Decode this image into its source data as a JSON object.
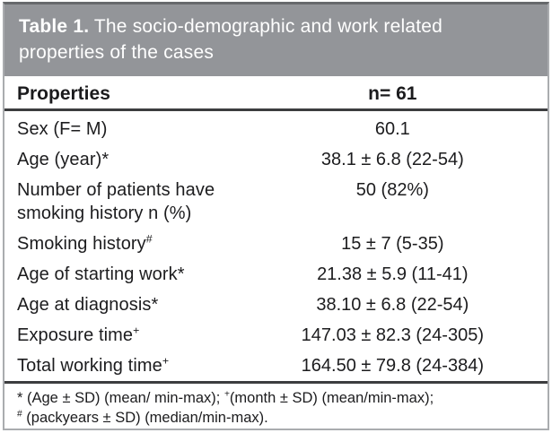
{
  "table": {
    "title_label": "Table 1.",
    "title_text": " The socio-demographic and work related properties of the cases",
    "columns": {
      "property": "Properties",
      "value": "n= 61"
    },
    "rows": [
      {
        "label": "Sex (F= M)",
        "sup": "",
        "value": "60.1"
      },
      {
        "label": "Age (year)*",
        "sup": "",
        "value": "38.1 ± 6.8 (22-54)"
      },
      {
        "label": "Number of patients have smoking history n (%)",
        "sup": "",
        "value": "50 (82%)"
      },
      {
        "label": "Smoking history",
        "sup": "#",
        "value": "15 ± 7 (5-35)"
      },
      {
        "label": "Age of starting work*",
        "sup": "",
        "value": "21.38 ± 5.9 (11-41)"
      },
      {
        "label": "Age at diagnosis*",
        "sup": "",
        "value": "38.10 ± 6.8 (22-54)"
      },
      {
        "label": "Exposure time",
        "sup": "+",
        "value": "147.03 ± 82.3 (24-305)"
      },
      {
        "label": "Total working time",
        "sup": "+",
        "value": "164.50 ± 79.8 (24-384)"
      }
    ],
    "footnote_lines": [
      [
        {
          "t": "* (Age ± SD) (mean/ min-max); "
        },
        {
          "s": "+"
        },
        {
          "t": "(month ± SD) (mean/min-max);"
        }
      ],
      [
        {
          "s": "#"
        },
        {
          "t": " (packyears ± SD) (median/min-max)."
        }
      ]
    ],
    "colors": {
      "header_bg": "#939599",
      "header_text": "#ffffff",
      "frame_border": "#aaacaf",
      "frame_border_top": "#67696c",
      "rule": "#3c3d3f",
      "body_text": "#1c1c1e"
    }
  }
}
